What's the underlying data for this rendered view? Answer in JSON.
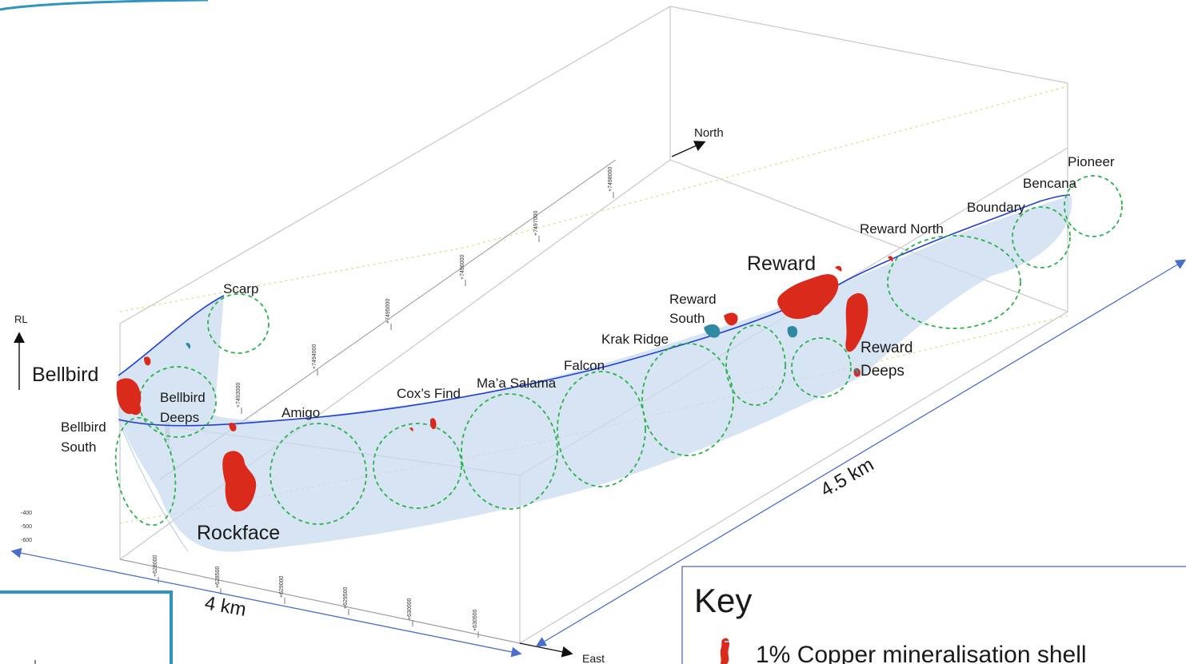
{
  "axes": {
    "north": "North",
    "east": "East",
    "rl": "RL"
  },
  "scale": {
    "length_a": "4 km",
    "length_b": "4.5 km"
  },
  "deposits": {
    "bellbird": "Bellbird",
    "reward": "Reward",
    "rockface": "Rockface"
  },
  "prospects": {
    "scarp": "Scarp",
    "bellbird_deeps_1": "Bellbird",
    "bellbird_deeps_2": "Deeps",
    "bellbird_south_1": "Bellbird",
    "bellbird_south_2": "South",
    "amigo": "Amigo",
    "coxs_find": "Cox’s Find",
    "maa_salama": "Ma’a Salama",
    "falcon": "Falcon",
    "krak_ridge": "Krak Ridge",
    "reward_south_1": "Reward",
    "reward_south_2": "South",
    "reward_north": "Reward North",
    "reward_deeps_1": "Reward",
    "reward_deeps_2": "Deeps",
    "boundary": "Boundary",
    "bencana": "Bencana",
    "pioneer": "Pioneer"
  },
  "northing_ticks": [
    "+7492000",
    "+7493000",
    "+7494000",
    "+7495000",
    "+7496000",
    "+7497000",
    "+7498000"
  ],
  "easting_ticks": [
    "+628000",
    "+628500",
    "+629000",
    "+629500",
    "+630000",
    "+630500"
  ],
  "rl_ticks": [
    "-400",
    "-500",
    "-600"
  ],
  "key": {
    "title": "Key",
    "item_1": "1% Copper mineralisation shell",
    "item_1_icon": "copper-shell-swatch-icon"
  },
  "colors": {
    "shell_fill": "#c9dbef",
    "shell_outline": "#1f3fd6",
    "target_ring": "#2bb24c",
    "mineralisation": "#d92a1c",
    "mineralisation_alt": "#2f8aa0",
    "scale_arrow": "#4a6fc8",
    "frame_accent": "#2f95c0"
  }
}
